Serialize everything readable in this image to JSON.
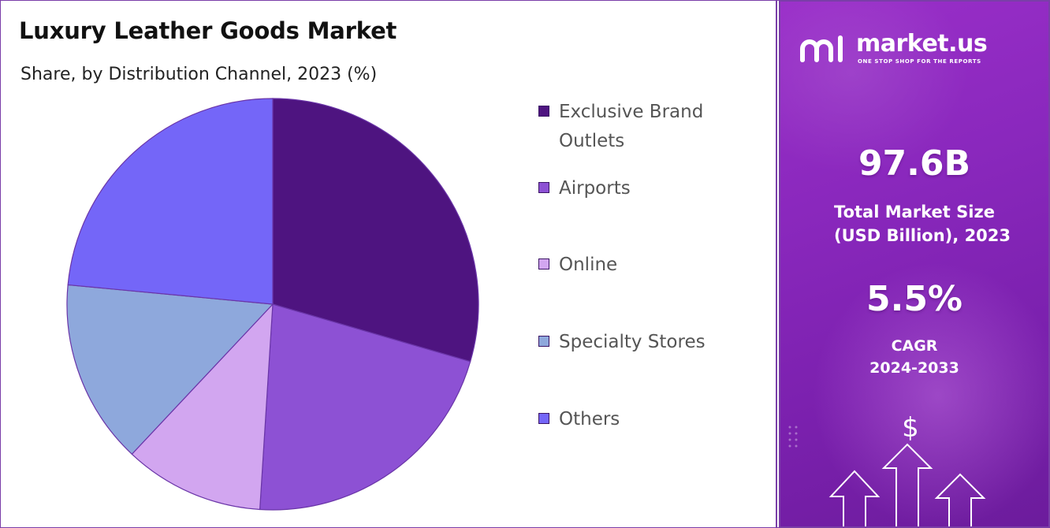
{
  "title": "Luxury Leather Goods Market",
  "subtitle": "Share, by Distribution Channel, 2023 (%)",
  "chart_data": {
    "type": "pie",
    "title": "Luxury Leather Goods Market",
    "subtitle": "Share, by Distribution Channel, 2023 (%)",
    "labels": [
      "Exclusive Brand Outlets",
      "Airports",
      "Online",
      "Specialty Stores",
      "Others"
    ],
    "values": [
      29.5,
      21.5,
      11.0,
      14.5,
      23.5
    ],
    "colors": [
      "#4e1480",
      "#8d51d4",
      "#d2a6f0",
      "#8ea8dc",
      "#7466f8"
    ],
    "legend_position": "right",
    "start_angle_deg": 0,
    "direction": "clockwise"
  },
  "legend": {
    "items": [
      {
        "label": "Exclusive Brand Outlets",
        "color": "#4e1480"
      },
      {
        "label": "Airports",
        "color": "#8d51d4"
      },
      {
        "label": "Online",
        "color": "#d2a6f0"
      },
      {
        "label": "Specialty Stores",
        "color": "#8ea8dc"
      },
      {
        "label": "Others",
        "color": "#7466f8"
      }
    ]
  },
  "sidebar": {
    "brand_name": "market.us",
    "brand_tagline": "ONE STOP SHOP FOR THE REPORTS",
    "market_size_value": "97.6B",
    "market_size_label_line1": "Total Market Size",
    "market_size_label_line2": "(USD Billion), 2023",
    "cagr_value": "5.5%",
    "cagr_label_line1": "CAGR",
    "cagr_label_line2": "2024-2033",
    "currency_symbol": "$"
  }
}
